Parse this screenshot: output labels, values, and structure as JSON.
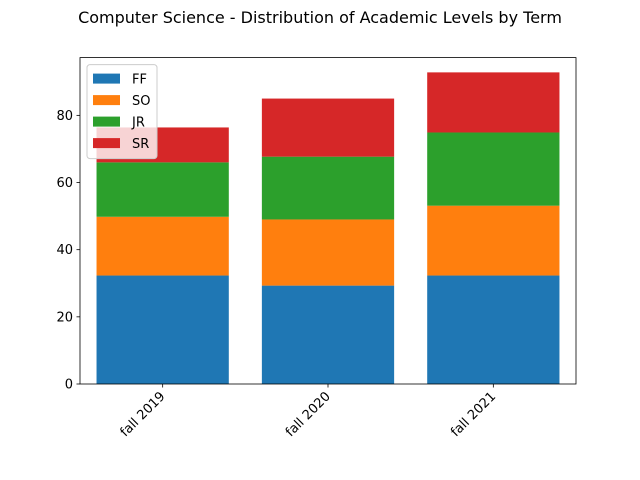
{
  "chart_data": {
    "type": "bar",
    "stacked": true,
    "title": "Computer Science - Distribution of Academic Levels by Term",
    "xlabel": "",
    "ylabel": "",
    "categories": [
      "fall 2019",
      "fall 2020",
      "fall 2021"
    ],
    "series": [
      {
        "name": "FF",
        "color": "#1f77b4",
        "values": [
          32.3,
          29.3,
          32.3
        ]
      },
      {
        "name": "SO",
        "color": "#ff7f0e",
        "values": [
          17.5,
          19.7,
          20.8
        ]
      },
      {
        "name": "JR",
        "color": "#2ca02c",
        "values": [
          16.2,
          18.7,
          21.8
        ]
      },
      {
        "name": "SR",
        "color": "#d62728",
        "values": [
          10.4,
          17.3,
          17.9
        ]
      }
    ],
    "ylim": [
      0,
      97.2
    ],
    "yticks": [
      0,
      20,
      40,
      60,
      80
    ],
    "grid": false,
    "legend_position": "top-left"
  }
}
